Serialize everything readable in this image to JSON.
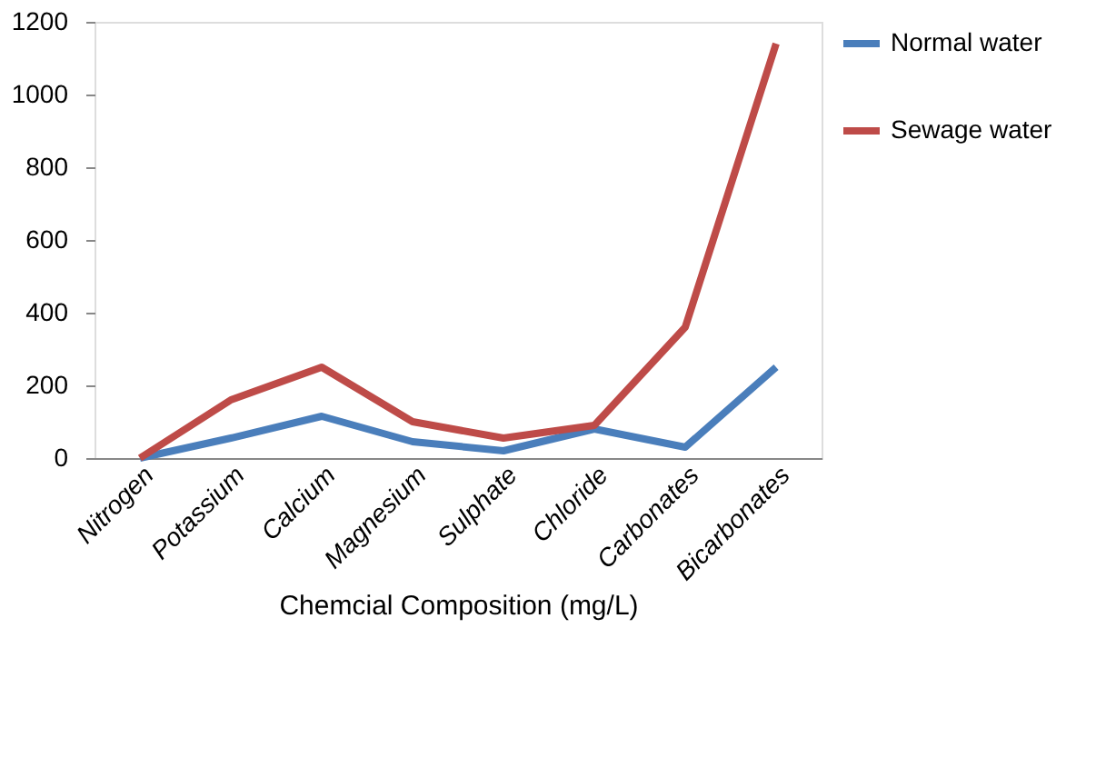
{
  "chart_data": {
    "type": "line",
    "xlabel": "Chemcial Composition (mg/L)",
    "categories": [
      "Nitrogen",
      "Potassium",
      "Calcium",
      "Magnesium",
      "Sulphate",
      "Chloride",
      "Carbonates",
      "Bicarbonates"
    ],
    "series": [
      {
        "name": "Normal water",
        "color": "#4a7ebb",
        "values": [
          0,
          55,
          115,
          45,
          20,
          80,
          30,
          250
        ]
      },
      {
        "name": "Sewage water",
        "color": "#be4b48",
        "values": [
          0,
          160,
          250,
          100,
          55,
          90,
          360,
          1140
        ]
      }
    ],
    "ylim": [
      0,
      1200
    ],
    "yticks": [
      0,
      200,
      400,
      600,
      800,
      1000,
      1200
    ],
    "grid": false,
    "legend": "right",
    "line_style": "solid",
    "marker": "none"
  }
}
